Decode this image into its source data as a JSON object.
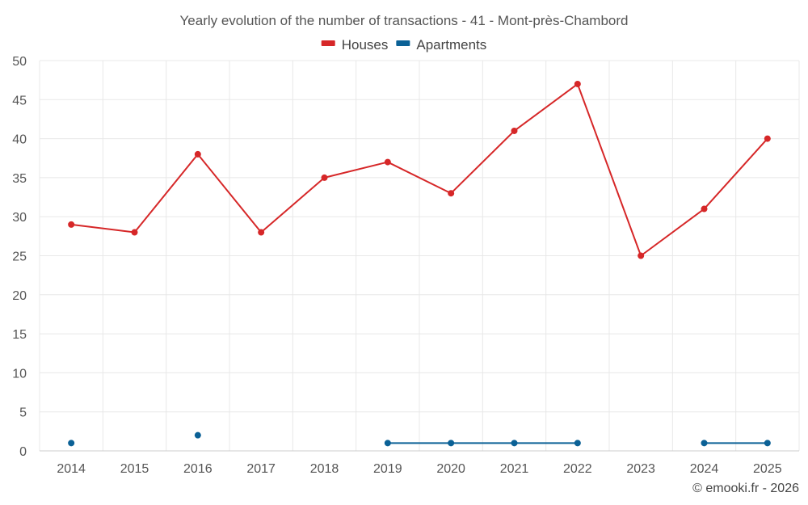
{
  "chart_data": {
    "type": "line",
    "title": "Yearly evolution of the number of transactions - 41 - Mont-près-Chambord",
    "categories": [
      "2014",
      "2015",
      "2016",
      "2017",
      "2018",
      "2019",
      "2020",
      "2021",
      "2022",
      "2023",
      "2024",
      "2025"
    ],
    "series": [
      {
        "name": "Houses",
        "color": "#d62728",
        "values": [
          29,
          28,
          38,
          28,
          35,
          37,
          33,
          41,
          47,
          25,
          31,
          40
        ]
      },
      {
        "name": "Apartments",
        "color": "#0b6196",
        "values": [
          1,
          null,
          2,
          null,
          null,
          1,
          1,
          1,
          1,
          null,
          1,
          1
        ]
      }
    ],
    "ylim": [
      0,
      50
    ],
    "yticks": [
      0,
      5,
      10,
      15,
      20,
      25,
      30,
      35,
      40,
      45,
      50
    ],
    "legend_position": "top-center",
    "grid": true,
    "credit": "© emooki.fr - 2026"
  }
}
